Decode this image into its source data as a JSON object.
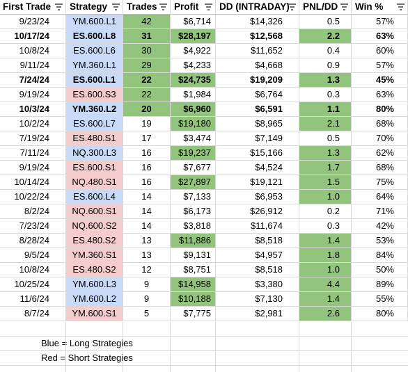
{
  "headers": [
    "First Trade",
    "Strategy",
    "Trades",
    "Profit",
    "DD (INTRADAY)",
    "PNL/DD",
    "Win %"
  ],
  "colors": {
    "green": "#93c47d",
    "long": "#c9daf8",
    "short": "#f4cccc",
    "grid": "#d9d9d9"
  },
  "rows": [
    {
      "first_trade": "9/23/24",
      "strategy": "YM.600.L1",
      "trades": "42",
      "profit": "$6,714",
      "dd": "$14,326",
      "pnl_dd": "0.5",
      "win": "57%",
      "side": "long",
      "bold": false,
      "trades_green": true,
      "profit_green": false,
      "pnl_green": false
    },
    {
      "first_trade": "10/17/24",
      "strategy": "ES.600.L8",
      "trades": "31",
      "profit": "$28,197",
      "dd": "$12,568",
      "pnl_dd": "2.2",
      "win": "63%",
      "side": "long",
      "bold": true,
      "trades_green": true,
      "profit_green": true,
      "pnl_green": true
    },
    {
      "first_trade": "10/8/24",
      "strategy": "ES.600.L6",
      "trades": "30",
      "profit": "$4,922",
      "dd": "$11,652",
      "pnl_dd": "0.4",
      "win": "60%",
      "side": "long",
      "bold": false,
      "trades_green": true,
      "profit_green": false,
      "pnl_green": false
    },
    {
      "first_trade": "9/11/24",
      "strategy": "YM.360.L1",
      "trades": "29",
      "profit": "$4,233",
      "dd": "$4,668",
      "pnl_dd": "0.9",
      "win": "57%",
      "side": "long",
      "bold": false,
      "trades_green": true,
      "profit_green": false,
      "pnl_green": false
    },
    {
      "first_trade": "7/24/24",
      "strategy": "ES.600.L1",
      "trades": "22",
      "profit": "$24,735",
      "dd": "$19,209",
      "pnl_dd": "1.3",
      "win": "45%",
      "side": "long",
      "bold": true,
      "trades_green": true,
      "profit_green": true,
      "pnl_green": true
    },
    {
      "first_trade": "9/19/24",
      "strategy": "ES.600.S3",
      "trades": "22",
      "profit": "$1,984",
      "dd": "$6,764",
      "pnl_dd": "0.3",
      "win": "63%",
      "side": "short",
      "bold": false,
      "trades_green": true,
      "profit_green": false,
      "pnl_green": false
    },
    {
      "first_trade": "10/3/24",
      "strategy": "YM.360.L2",
      "trades": "20",
      "profit": "$6,960",
      "dd": "$6,591",
      "pnl_dd": "1.1",
      "win": "80%",
      "side": "long",
      "bold": true,
      "trades_green": true,
      "profit_green": true,
      "pnl_green": true
    },
    {
      "first_trade": "10/2/24",
      "strategy": "ES.600.L7",
      "trades": "19",
      "profit": "$19,180",
      "dd": "$8,965",
      "pnl_dd": "2.1",
      "win": "68%",
      "side": "long",
      "bold": false,
      "trades_green": false,
      "profit_green": true,
      "pnl_green": true
    },
    {
      "first_trade": "7/19/24",
      "strategy": "ES.480.S1",
      "trades": "17",
      "profit": "$3,474",
      "dd": "$7,149",
      "pnl_dd": "0.5",
      "win": "70%",
      "side": "short",
      "bold": false,
      "trades_green": false,
      "profit_green": false,
      "pnl_green": false
    },
    {
      "first_trade": "7/11/24",
      "strategy": "NQ.300.L3",
      "trades": "16",
      "profit": "$19,237",
      "dd": "$15,166",
      "pnl_dd": "1.3",
      "win": "62%",
      "side": "long",
      "bold": false,
      "trades_green": false,
      "profit_green": true,
      "pnl_green": true
    },
    {
      "first_trade": "9/19/24",
      "strategy": "ES.600.S1",
      "trades": "16",
      "profit": "$7,677",
      "dd": "$4,524",
      "pnl_dd": "1.7",
      "win": "68%",
      "side": "short",
      "bold": false,
      "trades_green": false,
      "profit_green": false,
      "pnl_green": true
    },
    {
      "first_trade": "10/14/24",
      "strategy": "NQ.480.S1",
      "trades": "16",
      "profit": "$27,897",
      "dd": "$19,121",
      "pnl_dd": "1.5",
      "win": "75%",
      "side": "short",
      "bold": false,
      "trades_green": false,
      "profit_green": true,
      "pnl_green": true
    },
    {
      "first_trade": "10/22/24",
      "strategy": "ES.600.L4",
      "trades": "14",
      "profit": "$7,133",
      "dd": "$6,953",
      "pnl_dd": "1.0",
      "win": "64%",
      "side": "long",
      "bold": false,
      "trades_green": false,
      "profit_green": false,
      "pnl_green": true
    },
    {
      "first_trade": "8/2/24",
      "strategy": "NQ.600.S1",
      "trades": "14",
      "profit": "$6,173",
      "dd": "$26,912",
      "pnl_dd": "0.2",
      "win": "71%",
      "side": "short",
      "bold": false,
      "trades_green": false,
      "profit_green": false,
      "pnl_green": false
    },
    {
      "first_trade": "7/23/24",
      "strategy": "NQ.600.S2",
      "trades": "14",
      "profit": "$3,818",
      "dd": "$11,674",
      "pnl_dd": "0.3",
      "win": "42%",
      "side": "short",
      "bold": false,
      "trades_green": false,
      "profit_green": false,
      "pnl_green": false
    },
    {
      "first_trade": "8/28/24",
      "strategy": "ES.480.S2",
      "trades": "13",
      "profit": "$11,886",
      "dd": "$8,518",
      "pnl_dd": "1.4",
      "win": "53%",
      "side": "short",
      "bold": false,
      "trades_green": false,
      "profit_green": true,
      "pnl_green": true
    },
    {
      "first_trade": "9/5/24",
      "strategy": "YM.360.S1",
      "trades": "13",
      "profit": "$9,131",
      "dd": "$4,957",
      "pnl_dd": "1.8",
      "win": "84%",
      "side": "short",
      "bold": false,
      "trades_green": false,
      "profit_green": false,
      "pnl_green": true
    },
    {
      "first_trade": "10/8/24",
      "strategy": "ES.480.S2",
      "trades": "12",
      "profit": "$8,751",
      "dd": "$8,518",
      "pnl_dd": "1.0",
      "win": "50%",
      "side": "short",
      "bold": false,
      "trades_green": false,
      "profit_green": false,
      "pnl_green": true
    },
    {
      "first_trade": "10/25/24",
      "strategy": "YM.600.L3",
      "trades": "9",
      "profit": "$14,958",
      "dd": "$3,380",
      "pnl_dd": "4.4",
      "win": "89%",
      "side": "long",
      "bold": false,
      "trades_green": false,
      "profit_green": true,
      "pnl_green": true
    },
    {
      "first_trade": "11/6/24",
      "strategy": "YM.600.L2",
      "trades": "9",
      "profit": "$10,188",
      "dd": "$7,130",
      "pnl_dd": "1.4",
      "win": "55%",
      "side": "long",
      "bold": false,
      "trades_green": false,
      "profit_green": true,
      "pnl_green": true
    },
    {
      "first_trade": "8/7/24",
      "strategy": "YM.600.S1",
      "trades": "5",
      "profit": "$7,775",
      "dd": "$2,981",
      "pnl_dd": "2.6",
      "win": "80%",
      "side": "short",
      "bold": false,
      "trades_green": false,
      "profit_green": false,
      "pnl_green": true
    }
  ],
  "notes": {
    "blue": "Blue = Long Strategies",
    "red": "Red = Short Strategies"
  },
  "icons": {
    "filter": "filter-icon"
  }
}
